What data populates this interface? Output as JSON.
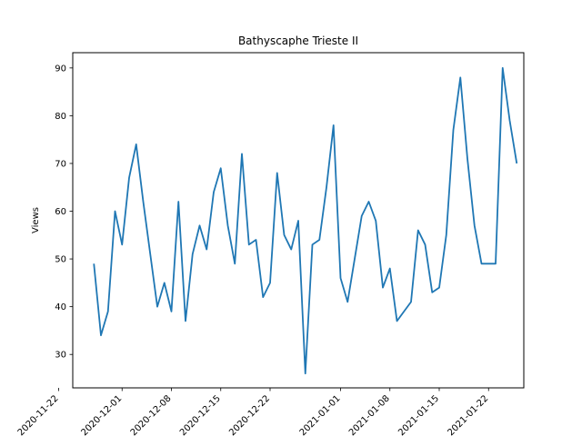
{
  "chart_data": {
    "type": "line",
    "title": "Bathyscaphe Trieste II",
    "xlabel": "",
    "ylabel": "Views",
    "x_start": "2020-11-27",
    "x_step_days": 1,
    "values": [
      49,
      34,
      39,
      60,
      53,
      67,
      74,
      62,
      51,
      40,
      45,
      39,
      62,
      37,
      51,
      57,
      52,
      64,
      69,
      57,
      49,
      72,
      53,
      54,
      42,
      45,
      68,
      55,
      52,
      58,
      26,
      53,
      54,
      65,
      78,
      46,
      41,
      50,
      59,
      62,
      58,
      44,
      48,
      37,
      39,
      41,
      56,
      53,
      43,
      44,
      55,
      77,
      88,
      71,
      57,
      49,
      49,
      49,
      90,
      79,
      70
    ],
    "xlim": [
      "2020-11-24",
      "2021-01-27"
    ],
    "ylim": [
      23,
      93.2
    ],
    "yticks": [
      30,
      40,
      50,
      60,
      70,
      80,
      90
    ],
    "xticks": [
      {
        "date": "2020-11-22",
        "label": "2020-11-22"
      },
      {
        "date": "2020-12-01",
        "label": "2020-12-01"
      },
      {
        "date": "2020-12-08",
        "label": "2020-12-08"
      },
      {
        "date": "2020-12-15",
        "label": "2020-12-15"
      },
      {
        "date": "2020-12-22",
        "label": "2020-12-22"
      },
      {
        "date": "2021-01-01",
        "label": "2021-01-01"
      },
      {
        "date": "2021-01-08",
        "label": "2021-01-08"
      },
      {
        "date": "2021-01-15",
        "label": "2021-01-15"
      },
      {
        "date": "2021-01-22",
        "label": "2021-01-22"
      }
    ],
    "line_color": "#1f77b4",
    "grid": false,
    "legend": "none"
  }
}
